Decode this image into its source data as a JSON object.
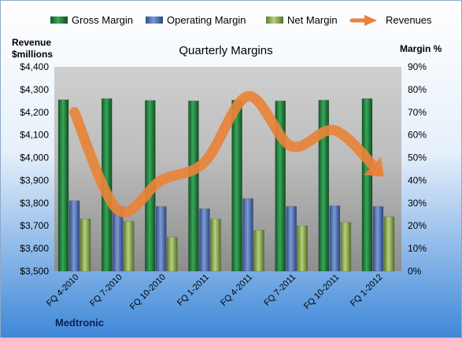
{
  "chart_data": {
    "type": "bar",
    "title": "Quarterly Margins",
    "footer": "Medtronic",
    "left_axis_title": [
      "Revenue",
      "$millions"
    ],
    "right_axis_title": "Margin %",
    "categories": [
      "FQ 4-2010",
      "FQ 7-2010",
      "FQ 10-2010",
      "FQ 1-2011",
      "FQ 4-2011",
      "FQ 7-2011",
      "FQ 10-2011",
      "FQ 1-2012"
    ],
    "left_ylim": [
      3500,
      4400
    ],
    "left_ticks": [
      "$3,500",
      "$3,600",
      "$3,700",
      "$3,800",
      "$3,900",
      "$4,000",
      "$4,100",
      "$4,200",
      "$4,300",
      "$4,400"
    ],
    "right_ylim": [
      0,
      90
    ],
    "right_ticks": [
      "0%",
      "10%",
      "20%",
      "30%",
      "40%",
      "50%",
      "60%",
      "70%",
      "80%",
      "90%"
    ],
    "series": [
      {
        "name": "Gross Margin",
        "kind": "bar",
        "axis": "right",
        "color": "#1f7a3c",
        "values": [
          75.5,
          76,
          75.2,
          75,
          75.3,
          75,
          75.3,
          76
        ]
      },
      {
        "name": "Operating Margin",
        "kind": "bar",
        "axis": "right",
        "color": "#4f6fb0",
        "values": [
          31,
          28.5,
          28.5,
          27.5,
          32,
          28.5,
          28.8,
          28.5
        ]
      },
      {
        "name": "Net Margin",
        "kind": "bar",
        "axis": "right",
        "color": "#8fb053",
        "values": [
          23,
          22,
          15,
          23,
          18,
          20,
          21.5,
          24
        ]
      },
      {
        "name": "Revenues",
        "kind": "line",
        "axis": "left",
        "color": "#e8833a",
        "values": [
          4200,
          3770,
          3900,
          3980,
          4270,
          4050,
          4120,
          3940
        ]
      }
    ],
    "legend_position": "top",
    "grid": false
  }
}
